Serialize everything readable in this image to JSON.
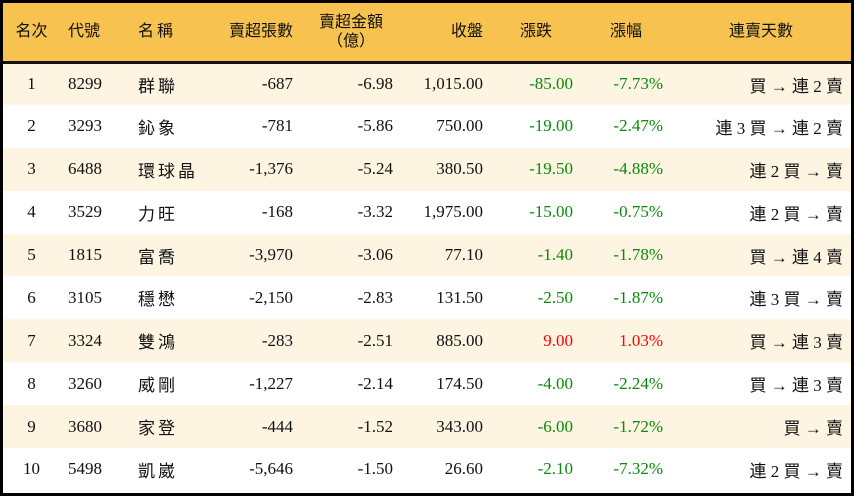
{
  "colors": {
    "header": "#F7C24F",
    "row_alt": "#FDF5E2",
    "down": "#0A8A0A",
    "up": "#FF0000"
  },
  "headers": {
    "rank": "名次",
    "code": "代號",
    "name": "名稱",
    "net_sell_lots": "賣超張數",
    "net_sell_amount": "賣超金額",
    "amount_unit": "（億）",
    "close": "收盤",
    "change": "漲跌",
    "change_pct": "漲幅",
    "streak": "連賣天數"
  },
  "rows": [
    {
      "rank": "1",
      "code": "8299",
      "name": "群聯",
      "lots": "-687",
      "amount": "-6.98",
      "close": "1,015.00",
      "change": "-85.00",
      "pct": "-7.73%",
      "dir": "down",
      "streak": "買 → 連 2 賣"
    },
    {
      "rank": "2",
      "code": "3293",
      "name": "鈊象",
      "lots": "-781",
      "amount": "-5.86",
      "close": "750.00",
      "change": "-19.00",
      "pct": "-2.47%",
      "dir": "down",
      "streak": "連 3 買 → 連 2 賣"
    },
    {
      "rank": "3",
      "code": "6488",
      "name": "環球晶",
      "lots": "-1,376",
      "amount": "-5.24",
      "close": "380.50",
      "change": "-19.50",
      "pct": "-4.88%",
      "dir": "down",
      "streak": "連 2 買 → 賣"
    },
    {
      "rank": "4",
      "code": "3529",
      "name": "力旺",
      "lots": "-168",
      "amount": "-3.32",
      "close": "1,975.00",
      "change": "-15.00",
      "pct": "-0.75%",
      "dir": "down",
      "streak": "連 2 買 → 賣"
    },
    {
      "rank": "5",
      "code": "1815",
      "name": "富喬",
      "lots": "-3,970",
      "amount": "-3.06",
      "close": "77.10",
      "change": "-1.40",
      "pct": "-1.78%",
      "dir": "down",
      "streak": "買 → 連 4 賣"
    },
    {
      "rank": "6",
      "code": "3105",
      "name": "穩懋",
      "lots": "-2,150",
      "amount": "-2.83",
      "close": "131.50",
      "change": "-2.50",
      "pct": "-1.87%",
      "dir": "down",
      "streak": "連 3 買 → 賣"
    },
    {
      "rank": "7",
      "code": "3324",
      "name": "雙鴻",
      "lots": "-283",
      "amount": "-2.51",
      "close": "885.00",
      "change": "9.00",
      "pct": "1.03%",
      "dir": "up",
      "streak": "買 → 連 3 賣"
    },
    {
      "rank": "8",
      "code": "3260",
      "name": "威剛",
      "lots": "-1,227",
      "amount": "-2.14",
      "close": "174.50",
      "change": "-4.00",
      "pct": "-2.24%",
      "dir": "down",
      "streak": "買 → 連 3 賣"
    },
    {
      "rank": "9",
      "code": "3680",
      "name": "家登",
      "lots": "-444",
      "amount": "-1.52",
      "close": "343.00",
      "change": "-6.00",
      "pct": "-1.72%",
      "dir": "down",
      "streak": "買 → 賣"
    },
    {
      "rank": "10",
      "code": "5498",
      "name": "凱崴",
      "lots": "-5,646",
      "amount": "-1.50",
      "close": "26.60",
      "change": "-2.10",
      "pct": "-7.32%",
      "dir": "down",
      "streak": "連 2 買 → 賣"
    }
  ]
}
